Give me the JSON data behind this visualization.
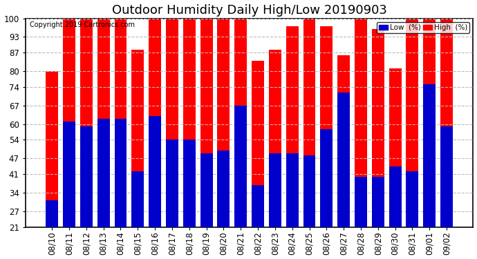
{
  "title": "Outdoor Humidity Daily High/Low 20190903",
  "copyright": "Copyright 2019 Cartronics.com",
  "categories": [
    "08/10",
    "08/11",
    "08/12",
    "08/13",
    "08/14",
    "08/15",
    "08/16",
    "08/17",
    "08/18",
    "08/19",
    "08/20",
    "08/21",
    "08/22",
    "08/23",
    "08/24",
    "08/25",
    "08/26",
    "08/27",
    "08/28",
    "08/29",
    "08/30",
    "08/31",
    "09/01",
    "09/02"
  ],
  "high": [
    80,
    100,
    100,
    100,
    100,
    88,
    100,
    100,
    100,
    100,
    100,
    100,
    84,
    88,
    97,
    100,
    97,
    86,
    100,
    96,
    81,
    100,
    100,
    100
  ],
  "low": [
    31,
    61,
    59,
    62,
    62,
    42,
    63,
    54,
    54,
    49,
    50,
    67,
    37,
    49,
    49,
    48,
    58,
    72,
    40,
    40,
    44,
    42,
    75,
    59
  ],
  "high_color": "#ff0000",
  "low_color": "#0000cc",
  "bg_color": "#ffffff",
  "plot_bg_color": "#ffffff",
  "ylim_min": 21,
  "ylim_max": 100,
  "yticks": [
    21,
    27,
    34,
    41,
    47,
    54,
    60,
    67,
    74,
    80,
    87,
    93,
    100
  ],
  "grid_color": "#bbbbbb",
  "legend_low_label": "Low  (%)",
  "legend_high_label": "High  (%)",
  "title_fontsize": 13,
  "tick_fontsize": 8.5,
  "bar_width": 0.72,
  "border_color": "#000000",
  "outer_bg": "#ffffff"
}
